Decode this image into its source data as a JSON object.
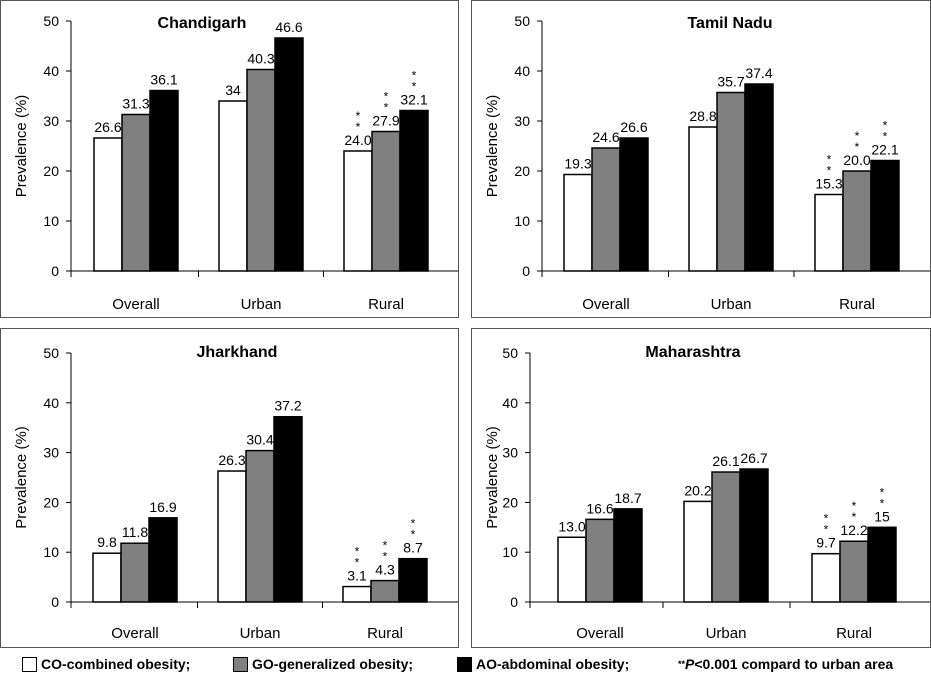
{
  "chart_data": [
    {
      "type": "bar",
      "title": "Chandigarh",
      "ylabel": "Prevalence (%)",
      "xlabel": "",
      "ylim": [
        0,
        50
      ],
      "yticks": [
        "0",
        "10",
        "20",
        "30",
        "40",
        "50"
      ],
      "categories": [
        "Overall",
        "Urban",
        "Rural"
      ],
      "series": [
        {
          "name": "CO",
          "values": [
            26.6,
            34,
            24.0
          ],
          "labels": [
            "26.6",
            "34",
            "24.0"
          ],
          "sig": [
            false,
            false,
            true
          ]
        },
        {
          "name": "GO",
          "values": [
            31.3,
            40.3,
            27.9
          ],
          "labels": [
            "31.3",
            "40.3",
            "27.9"
          ],
          "sig": [
            false,
            false,
            true
          ]
        },
        {
          "name": "AO",
          "values": [
            36.1,
            46.6,
            32.1
          ],
          "labels": [
            "36.1",
            "46.6",
            "32.1"
          ],
          "sig": [
            false,
            false,
            true
          ]
        }
      ]
    },
    {
      "type": "bar",
      "title": "Tamil Nadu",
      "ylabel": "Prevalence (%)",
      "xlabel": "",
      "ylim": [
        0,
        50
      ],
      "yticks": [
        "0",
        "10",
        "20",
        "30",
        "40",
        "50"
      ],
      "categories": [
        "Overall",
        "Urban",
        "Rural"
      ],
      "series": [
        {
          "name": "CO",
          "values": [
            19.3,
            28.8,
            15.3
          ],
          "labels": [
            "19.3",
            "28.8",
            "15.3"
          ],
          "sig": [
            false,
            false,
            true
          ]
        },
        {
          "name": "GO",
          "values": [
            24.6,
            35.7,
            20.0
          ],
          "labels": [
            "24.6",
            "35.7",
            "20.0"
          ],
          "sig": [
            false,
            false,
            true
          ]
        },
        {
          "name": "AO",
          "values": [
            26.6,
            37.4,
            22.1
          ],
          "labels": [
            "26.6",
            "37.4",
            "22.1"
          ],
          "sig": [
            false,
            false,
            true
          ]
        }
      ]
    },
    {
      "type": "bar",
      "title": "Jharkhand",
      "ylabel": "Prevalence (%)",
      "xlabel": "",
      "ylim": [
        0,
        50
      ],
      "yticks": [
        "0",
        "10",
        "20",
        "30",
        "40",
        "50"
      ],
      "categories": [
        "Overall",
        "Urban",
        "Rural"
      ],
      "series": [
        {
          "name": "CO",
          "values": [
            9.8,
            26.3,
            3.1
          ],
          "labels": [
            "9.8",
            "26.3",
            "3.1"
          ],
          "sig": [
            false,
            false,
            true
          ]
        },
        {
          "name": "GO",
          "values": [
            11.8,
            30.4,
            4.3
          ],
          "labels": [
            "11.8",
            "30.4",
            "4.3"
          ],
          "sig": [
            false,
            false,
            true
          ]
        },
        {
          "name": "AO",
          "values": [
            16.9,
            37.2,
            8.7
          ],
          "labels": [
            "16.9",
            "37.2",
            "8.7"
          ],
          "sig": [
            false,
            false,
            true
          ]
        }
      ]
    },
    {
      "type": "bar",
      "title": "Maharashtra",
      "ylabel": "Prevalence (%)",
      "xlabel": "",
      "ylim": [
        0,
        50
      ],
      "yticks": [
        "0",
        "10",
        "20",
        "30",
        "40",
        "50"
      ],
      "categories": [
        "Overall",
        "Urban",
        "Rural"
      ],
      "series": [
        {
          "name": "CO",
          "values": [
            13.0,
            20.2,
            9.7
          ],
          "labels": [
            "13.0",
            "20.2",
            "9.7"
          ],
          "sig": [
            false,
            false,
            true
          ]
        },
        {
          "name": "GO",
          "values": [
            16.6,
            26.1,
            12.2
          ],
          "labels": [
            "16.6",
            "26.1",
            "12.2"
          ],
          "sig": [
            false,
            false,
            true
          ]
        },
        {
          "name": "AO",
          "values": [
            18.7,
            26.7,
            15
          ],
          "labels": [
            "18.7",
            "26.7",
            "15"
          ],
          "sig": [
            false,
            false,
            true
          ]
        }
      ]
    }
  ],
  "series_colors": {
    "CO": "#ffffff",
    "GO": "#808080",
    "AO": "#000000"
  },
  "sig_marker": "*",
  "legend": {
    "co_label": "CO-combined obesity;",
    "go_label": "GO-generalized obesity;",
    "ao_label": "AO-abdominal obesity;",
    "note_stars": "**",
    "note_p": "P",
    "note_rest": "<0.001 compard to urban area"
  }
}
